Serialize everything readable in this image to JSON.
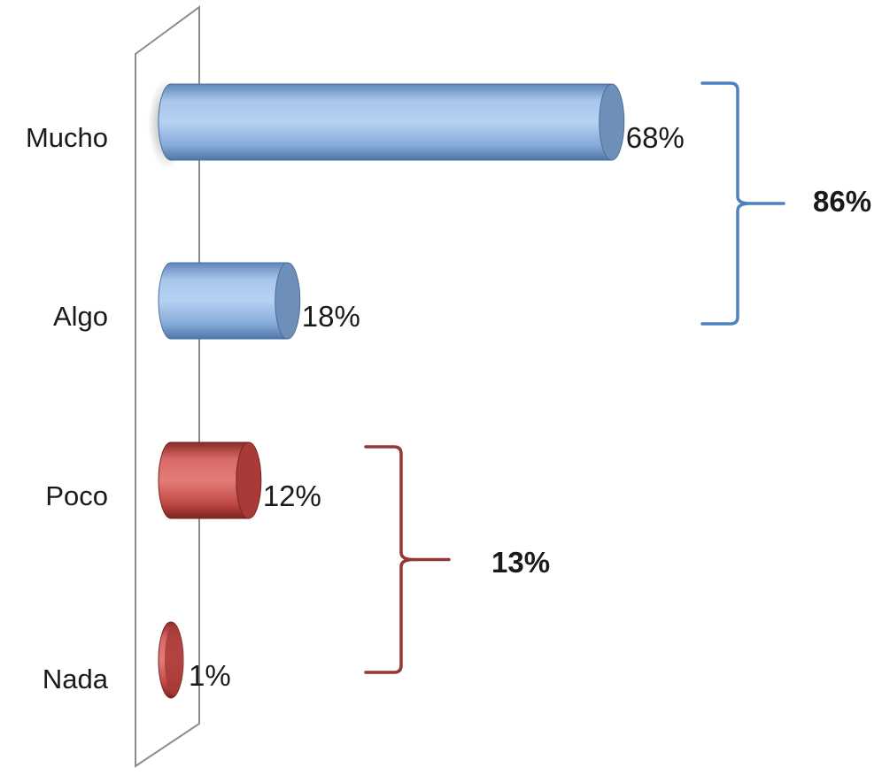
{
  "chart_data": {
    "type": "bar",
    "orientation": "horizontal",
    "categories": [
      "Mucho",
      "Algo",
      "Poco",
      "Nada"
    ],
    "values": [
      68,
      18,
      12,
      1
    ],
    "value_labels": [
      "68%",
      "18%",
      "12%",
      "1%"
    ],
    "xlim": [
      0,
      100
    ],
    "colors": {
      "positive": "#8eb4e3",
      "negative": "#c0504d",
      "positive_bracket": "#4f81bd",
      "negative_bracket": "#953735",
      "wall": "#8c8c8c"
    },
    "groups": [
      {
        "label": "86%",
        "members": [
          "Mucho",
          "Algo"
        ],
        "tone": "positive"
      },
      {
        "label": "13%",
        "members": [
          "Poco",
          "Nada"
        ],
        "tone": "negative"
      }
    ]
  }
}
